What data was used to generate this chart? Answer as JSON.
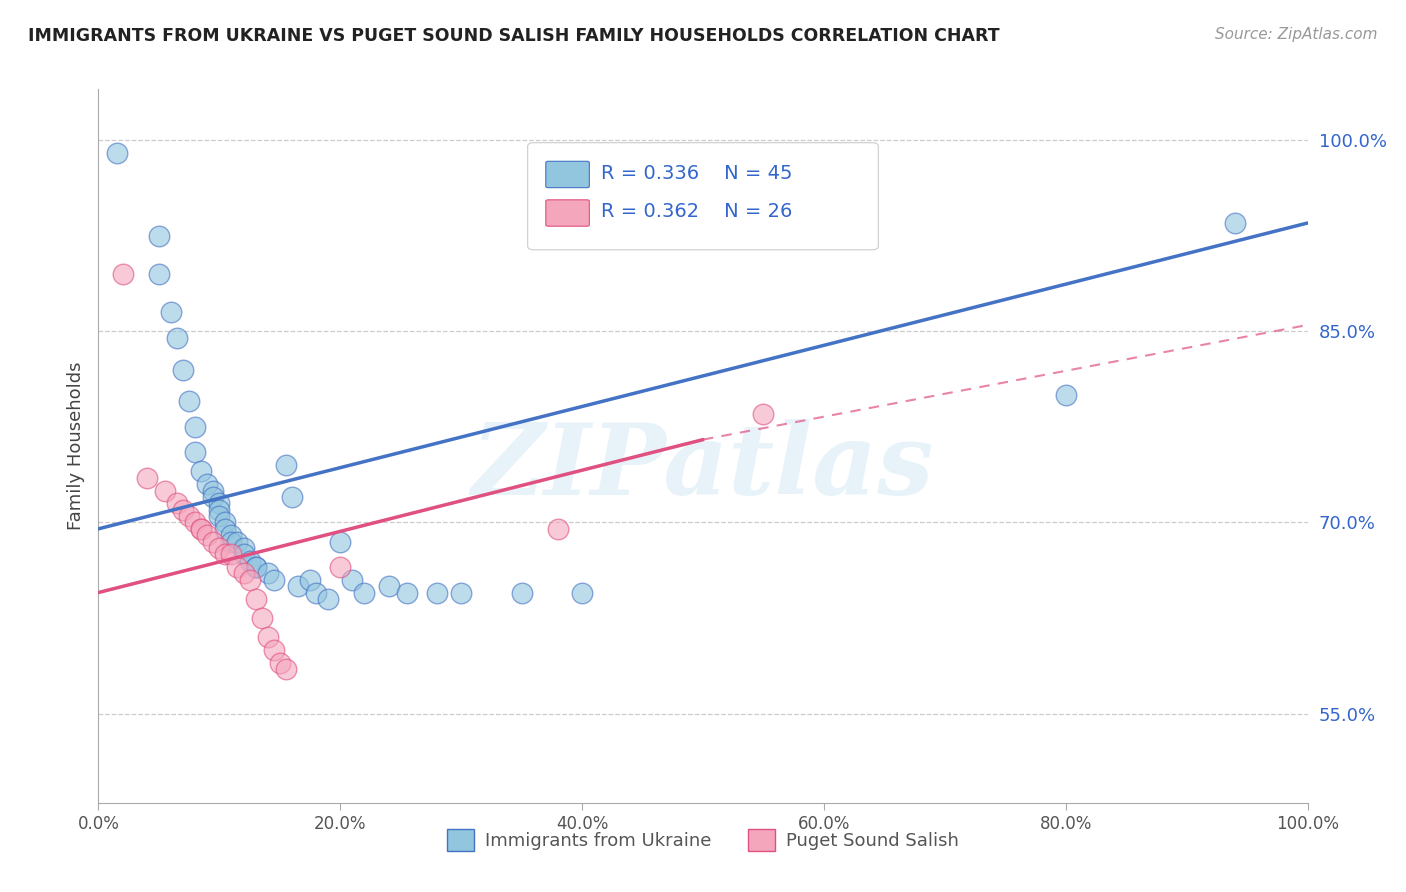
{
  "title": "IMMIGRANTS FROM UKRAINE VS PUGET SOUND SALISH FAMILY HOUSEHOLDS CORRELATION CHART",
  "source": "Source: ZipAtlas.com",
  "ylabel": "Family Households",
  "y_ticks": [
    55.0,
    70.0,
    85.0,
    100.0
  ],
  "y_tick_labels": [
    "55.0%",
    "70.0%",
    "85.0%",
    "100.0%"
  ],
  "xlim": [
    0.0,
    1.0
  ],
  "ylim": [
    0.48,
    1.04
  ],
  "blue_color": "#92c5de",
  "pink_color": "#f4a6bd",
  "blue_line_color": "#4472c4",
  "pink_line_color": "#e05080",
  "legend_color": "#3366cc",
  "watermark": "ZIPatlas",
  "blue_scatter": [
    [
      0.015,
      0.99
    ],
    [
      0.05,
      0.925
    ],
    [
      0.05,
      0.895
    ],
    [
      0.06,
      0.865
    ],
    [
      0.065,
      0.845
    ],
    [
      0.07,
      0.82
    ],
    [
      0.075,
      0.795
    ],
    [
      0.08,
      0.775
    ],
    [
      0.08,
      0.755
    ],
    [
      0.085,
      0.74
    ],
    [
      0.09,
      0.73
    ],
    [
      0.095,
      0.725
    ],
    [
      0.095,
      0.72
    ],
    [
      0.1,
      0.715
    ],
    [
      0.1,
      0.71
    ],
    [
      0.1,
      0.705
    ],
    [
      0.105,
      0.7
    ],
    [
      0.105,
      0.695
    ],
    [
      0.11,
      0.69
    ],
    [
      0.11,
      0.685
    ],
    [
      0.115,
      0.685
    ],
    [
      0.12,
      0.68
    ],
    [
      0.12,
      0.675
    ],
    [
      0.125,
      0.67
    ],
    [
      0.13,
      0.665
    ],
    [
      0.13,
      0.665
    ],
    [
      0.14,
      0.66
    ],
    [
      0.145,
      0.655
    ],
    [
      0.155,
      0.745
    ],
    [
      0.16,
      0.72
    ],
    [
      0.165,
      0.65
    ],
    [
      0.175,
      0.655
    ],
    [
      0.18,
      0.645
    ],
    [
      0.19,
      0.64
    ],
    [
      0.2,
      0.685
    ],
    [
      0.21,
      0.655
    ],
    [
      0.22,
      0.645
    ],
    [
      0.24,
      0.65
    ],
    [
      0.255,
      0.645
    ],
    [
      0.28,
      0.645
    ],
    [
      0.3,
      0.645
    ],
    [
      0.35,
      0.645
    ],
    [
      0.4,
      0.645
    ],
    [
      0.8,
      0.8
    ],
    [
      0.94,
      0.935
    ]
  ],
  "pink_scatter": [
    [
      0.02,
      0.895
    ],
    [
      0.04,
      0.735
    ],
    [
      0.055,
      0.725
    ],
    [
      0.065,
      0.715
    ],
    [
      0.07,
      0.71
    ],
    [
      0.075,
      0.705
    ],
    [
      0.08,
      0.7
    ],
    [
      0.085,
      0.695
    ],
    [
      0.085,
      0.695
    ],
    [
      0.09,
      0.69
    ],
    [
      0.095,
      0.685
    ],
    [
      0.1,
      0.68
    ],
    [
      0.105,
      0.675
    ],
    [
      0.11,
      0.675
    ],
    [
      0.115,
      0.665
    ],
    [
      0.12,
      0.66
    ],
    [
      0.125,
      0.655
    ],
    [
      0.13,
      0.64
    ],
    [
      0.135,
      0.625
    ],
    [
      0.14,
      0.61
    ],
    [
      0.145,
      0.6
    ],
    [
      0.15,
      0.59
    ],
    [
      0.155,
      0.585
    ],
    [
      0.2,
      0.665
    ],
    [
      0.38,
      0.695
    ],
    [
      0.55,
      0.785
    ]
  ],
  "blue_line": [
    [
      0.0,
      0.695
    ],
    [
      1.0,
      0.935
    ]
  ],
  "pink_line_solid": [
    [
      0.0,
      0.645
    ],
    [
      0.5,
      0.765
    ]
  ],
  "pink_line_dash": [
    [
      0.5,
      0.765
    ],
    [
      1.0,
      0.855
    ]
  ]
}
